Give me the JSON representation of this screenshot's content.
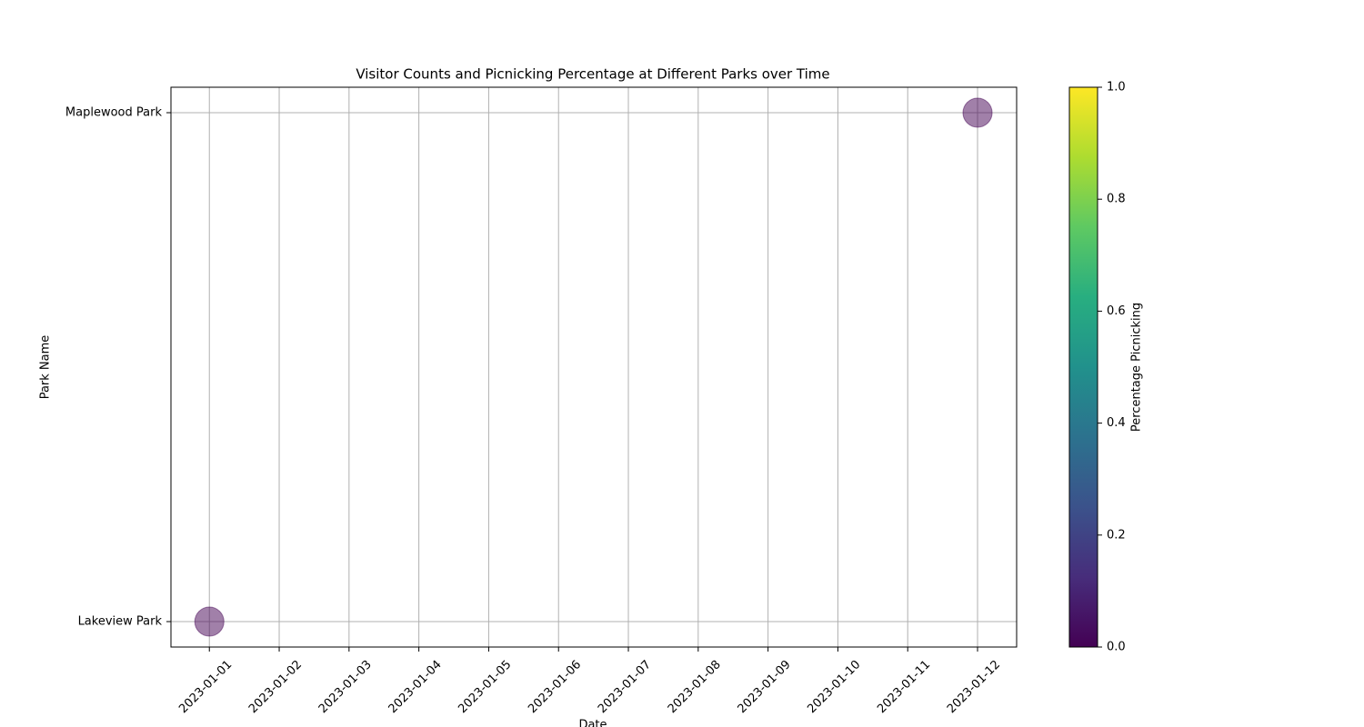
{
  "chart_data": {
    "type": "scatter",
    "title": "Visitor Counts and Picnicking Percentage at Different Parks over Time",
    "x_label": "Date",
    "y_label": "Park Name",
    "y_categories": [
      "Lakeview Park",
      "Maplewood Park"
    ],
    "ylim": [
      -0.05,
      1.05
    ],
    "xlim": [
      "2022-12-31T10:48Z",
      "2023-01-12T13:26Z"
    ],
    "xticks": [
      "2023-01-01",
      "2023-01-02",
      "2023-01-03",
      "2023-01-04",
      "2023-01-05",
      "2023-01-06",
      "2023-01-07",
      "2023-01-08",
      "2023-01-09",
      "2023-01-10",
      "2023-01-11",
      "2023-01-12"
    ],
    "grid": true,
    "opacity": 0.5,
    "colormap": "viridis",
    "series": [
      {
        "x": [
          "2023-01-01",
          "2023-01-12"
        ],
        "y": [
          "Lakeview Park",
          "Maplewood Park"
        ],
        "color_values": [
          0,
          0
        ]
      }
    ],
    "colorbar": {
      "label": "Percentage Picnicking",
      "lim": [
        0,
        1
      ],
      "ticks": [
        {
          "value": 0,
          "label": "0.0"
        },
        0.2,
        0.4,
        0.6,
        0.8,
        {
          "value": 1,
          "label": "1.0"
        }
      ]
    }
  }
}
